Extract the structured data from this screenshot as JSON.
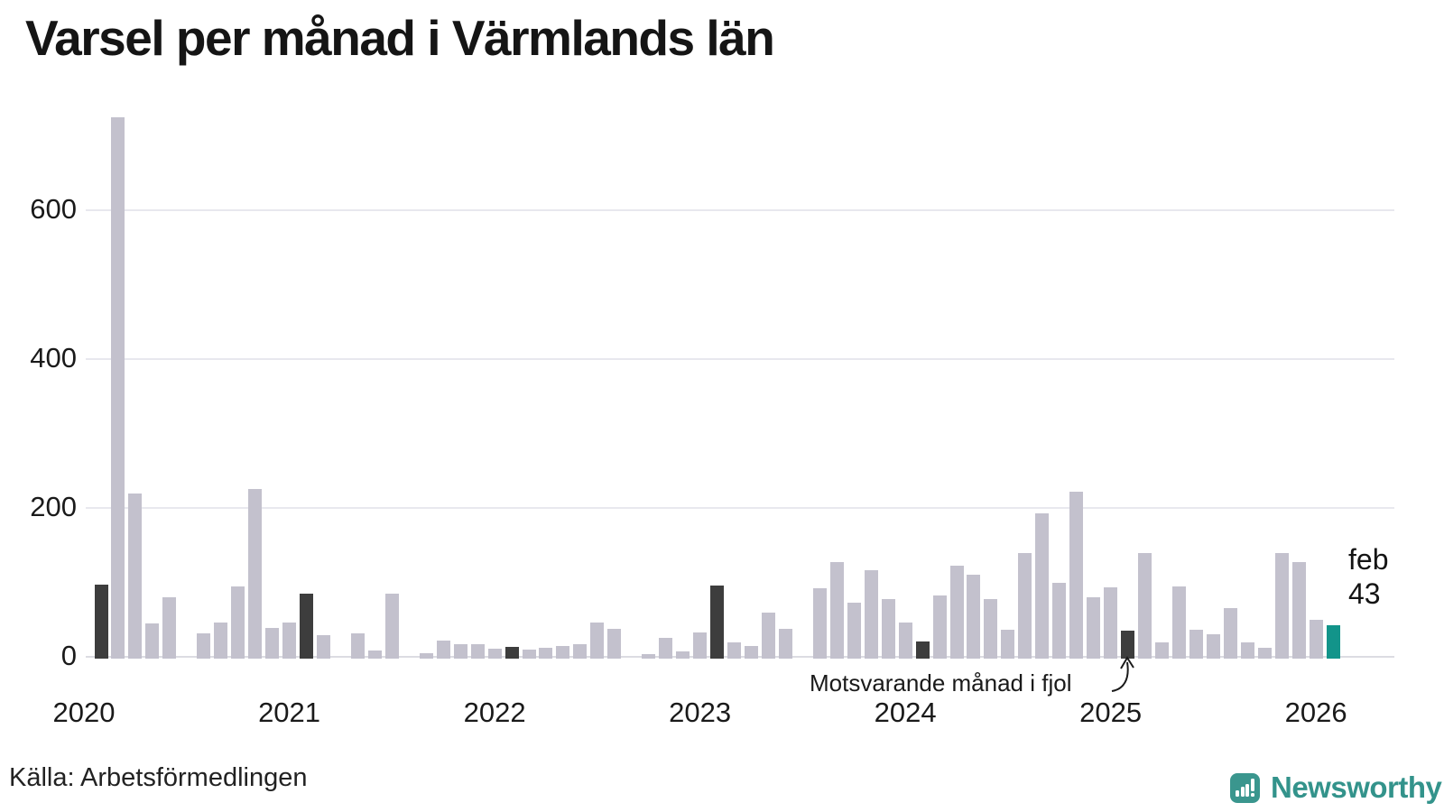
{
  "chart_data": {
    "type": "bar",
    "title": "Varsel per månad i Värmlands län",
    "source": "Källa: Arbetsförmedlingen",
    "annotation": "Motsvarande månad i fjol",
    "highlight_label": {
      "month": "feb",
      "value": "43"
    },
    "xlabel": "",
    "ylabel": "",
    "yticks": [
      0,
      200,
      400,
      600
    ],
    "ylim": [
      0,
      740
    ],
    "grid": "horizontal",
    "year_labels": [
      "2020",
      "2021",
      "2022",
      "2023",
      "2024",
      "2025",
      "2026"
    ],
    "legend": "none",
    "series_note": "kind: feb = same month previous years (dark), current = latest month (teal)",
    "series": [
      {
        "m": "2020-02",
        "v": 97,
        "k": "feb"
      },
      {
        "m": "2020-03",
        "v": 725
      },
      {
        "m": "2020-04",
        "v": 220
      },
      {
        "m": "2020-05",
        "v": 45
      },
      {
        "m": "2020-06",
        "v": 80
      },
      {
        "m": "2020-07",
        "v": 0
      },
      {
        "m": "2020-08",
        "v": 31
      },
      {
        "m": "2020-09",
        "v": 46
      },
      {
        "m": "2020-10",
        "v": 94
      },
      {
        "m": "2020-11",
        "v": 225
      },
      {
        "m": "2020-12",
        "v": 39
      },
      {
        "m": "2021-01",
        "v": 46
      },
      {
        "m": "2021-02",
        "v": 85,
        "k": "feb"
      },
      {
        "m": "2021-03",
        "v": 29
      },
      {
        "m": "2021-04",
        "v": 0
      },
      {
        "m": "2021-05",
        "v": 32
      },
      {
        "m": "2021-06",
        "v": 8
      },
      {
        "m": "2021-07",
        "v": 85
      },
      {
        "m": "2021-08",
        "v": 0
      },
      {
        "m": "2021-09",
        "v": 5
      },
      {
        "m": "2021-10",
        "v": 22
      },
      {
        "m": "2021-11",
        "v": 17
      },
      {
        "m": "2021-12",
        "v": 17
      },
      {
        "m": "2022-01",
        "v": 11
      },
      {
        "m": "2022-02",
        "v": 13,
        "k": "feb"
      },
      {
        "m": "2022-03",
        "v": 10
      },
      {
        "m": "2022-04",
        "v": 12
      },
      {
        "m": "2022-05",
        "v": 15
      },
      {
        "m": "2022-06",
        "v": 17
      },
      {
        "m": "2022-07",
        "v": 46
      },
      {
        "m": "2022-08",
        "v": 38
      },
      {
        "m": "2022-09",
        "v": 0
      },
      {
        "m": "2022-10",
        "v": 4
      },
      {
        "m": "2022-11",
        "v": 26
      },
      {
        "m": "2022-12",
        "v": 7
      },
      {
        "m": "2023-01",
        "v": 33
      },
      {
        "m": "2023-02",
        "v": 96,
        "k": "feb"
      },
      {
        "m": "2023-03",
        "v": 19
      },
      {
        "m": "2023-04",
        "v": 14
      },
      {
        "m": "2023-05",
        "v": 59
      },
      {
        "m": "2023-06",
        "v": 38
      },
      {
        "m": "2023-07",
        "v": 0
      },
      {
        "m": "2023-08",
        "v": 92
      },
      {
        "m": "2023-09",
        "v": 127
      },
      {
        "m": "2023-10",
        "v": 73
      },
      {
        "m": "2023-11",
        "v": 116
      },
      {
        "m": "2023-12",
        "v": 77
      },
      {
        "m": "2024-01",
        "v": 46
      },
      {
        "m": "2024-02",
        "v": 21,
        "k": "feb"
      },
      {
        "m": "2024-03",
        "v": 83
      },
      {
        "m": "2024-04",
        "v": 122
      },
      {
        "m": "2024-05",
        "v": 110
      },
      {
        "m": "2024-06",
        "v": 77
      },
      {
        "m": "2024-07",
        "v": 36
      },
      {
        "m": "2024-08",
        "v": 139
      },
      {
        "m": "2024-09",
        "v": 193
      },
      {
        "m": "2024-10",
        "v": 100
      },
      {
        "m": "2024-11",
        "v": 222
      },
      {
        "m": "2024-12",
        "v": 80
      },
      {
        "m": "2025-01",
        "v": 93
      },
      {
        "m": "2025-02",
        "v": 35,
        "k": "feb"
      },
      {
        "m": "2025-03",
        "v": 139
      },
      {
        "m": "2025-04",
        "v": 20
      },
      {
        "m": "2025-05",
        "v": 94
      },
      {
        "m": "2025-06",
        "v": 36
      },
      {
        "m": "2025-07",
        "v": 30
      },
      {
        "m": "2025-08",
        "v": 65
      },
      {
        "m": "2025-09",
        "v": 20
      },
      {
        "m": "2025-10",
        "v": 12
      },
      {
        "m": "2025-11",
        "v": 140
      },
      {
        "m": "2025-12",
        "v": 127
      },
      {
        "m": "2026-01",
        "v": 50
      },
      {
        "m": "2026-02",
        "v": 43,
        "k": "current"
      }
    ],
    "colors": {
      "bar": "#c3c1cd",
      "highlight_dark": "#3d3d3d",
      "current_teal": "#12948a",
      "grid": "#e8e8ee",
      "axis_line": "#dcdce2",
      "text": "#1a1a1a"
    }
  },
  "branding": {
    "logo_text": "Newsworthy",
    "logo_color": "#3a968e"
  }
}
